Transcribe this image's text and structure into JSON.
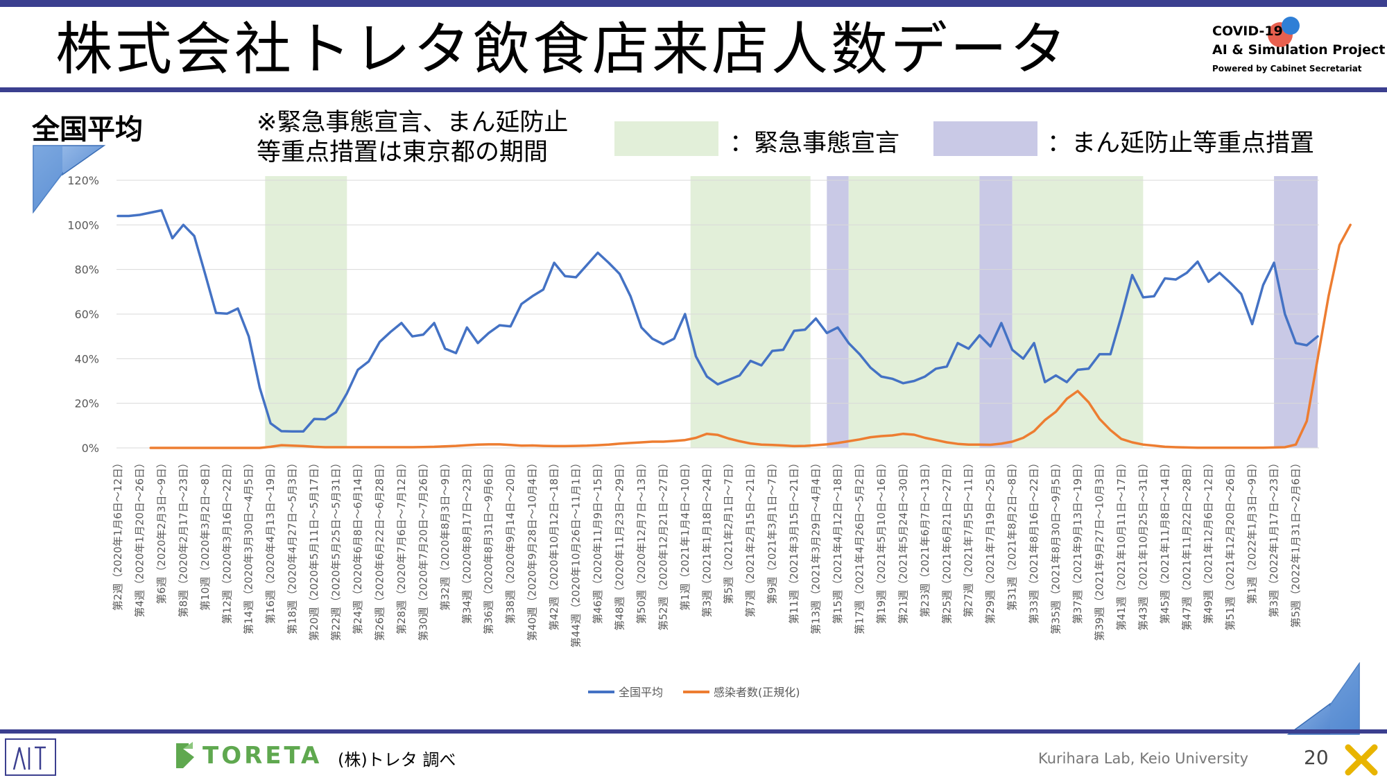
{
  "slide": {
    "title": "株式会社トレタ飲食店来店人数データ",
    "logo": {
      "line1": "COVID-19",
      "line2": "AI & Simulation Project",
      "line3": "Powered by Cabinet Secretariat"
    },
    "section_label": "全国平均",
    "note_line1": "※緊急事態宣言、まん延防止",
    "note_line2": "等重点措置は東京都の期間",
    "legend_emergency": "：緊急事態宣言",
    "legend_manen": "：まん延防止等重点措置",
    "source": "(株)トレタ 調べ",
    "toreta_logo": "TORETA",
    "lab": "Kurihara Lab, Keio University",
    "page_number": "20"
  },
  "colors": {
    "accent_bar": "#3b3f8f",
    "emergency": "#e2efd9",
    "manen": "#c9c9e6",
    "series_avg": "#4472c4",
    "series_infect": "#ed7d31"
  },
  "chart_data": {
    "type": "line",
    "ylim": [
      0,
      120
    ],
    "y_ticks": [
      "0%",
      "20%",
      "40%",
      "60%",
      "80%",
      "100%",
      "120%"
    ],
    "x_tick_labels": [
      "第2週（2020年1月6日～12日）",
      "第4週（2020年1月20日～26日）",
      "第6週（2020年2月3日～9日）",
      "第8週（2020年2月17日～23日）",
      "第10週（2020年3月2日～8日）",
      "第12週（2020年3月16日～22日）",
      "第14週（2020年3月30日～4月5日）",
      "第16週（2020年4月13日～19日）",
      "第18週（2020年4月27日～5月3日）",
      "第20週（2020年5月11日～5月17日）",
      "第22週（2020年5月25日～5月31日）",
      "第24週（2020年6月8日～6月14日）",
      "第26週（2020年6月22日～6月28日）",
      "第28週（2020年7月6日～7月12日）",
      "第30週（2020年7月20日～7月26日）",
      "第32週（2020年8月3日～9日）",
      "第34週（2020年8月17日～23日）",
      "第36週（2020年8月31日～9月6日）",
      "第38週（2020年9月14日～20日）",
      "第40週（2020年9月28日～10月4日）",
      "第42週（2020年10月12日～18日）",
      "第44週（2020年10月26日～11月1日）",
      "第46週（2020年11月9日～15日）",
      "第48週（2020年11月23日～29日）",
      "第50週（2020年12月7日～13日）",
      "第52週（2020年12月21日～27日）",
      "第1週（2021年1月4日～10日）",
      "第3週（2021年1月18日～24日）",
      "第5週（2021年2月1日～7日）",
      "第7週（2021年2月15日～21日）",
      "第9週（2021年3月1日～7日）",
      "第11週（2021年3月15日～21日）",
      "第13週（2021年3月29日～4月4日）",
      "第15週（2021年4月12日～18日）",
      "第17週（2021年4月26日～5月2日）",
      "第19週（2021年5月10日～16日）",
      "第21週（2021年5月24日～30日）",
      "第23週（2021年6月7日～13日）",
      "第25週（2021年6月21日～27日）",
      "第27週（2021年7月5日～11日）",
      "第29週（2021年7月19日～25日）",
      "第31週（2021年8月2日～8日）",
      "第33週（2021年8月16日～22日）",
      "第35週（2021年8月30日～9月5日）",
      "第37週（2021年9月13日～19日）",
      "第39週（2021年9月27日～10月3日）",
      "第41週（2021年10月11日～17日）",
      "第43週（2021年10月25日～31日）",
      "第45週（2021年11月8日～14日）",
      "第47週（2021年11月22日～28日）",
      "第49週（2021年12月6日～12日）",
      "第51週（2021年12月20日～26日）",
      "第1週（2022年1月3日～9日）",
      "第3週（2022年1月17日～23日）",
      "第5週（2022年1月31日～2月6日）"
    ],
    "series": [
      {
        "name": "全国平均",
        "values": [
          104,
          104,
          104.5,
          105.5,
          106.5,
          94,
          100,
          95,
          78,
          60.5,
          60.2,
          62.5,
          50,
          27,
          11,
          7.5,
          7.4,
          7.4,
          13,
          12.8,
          16,
          24.5,
          35,
          38.8,
          47.5,
          52,
          56,
          50,
          50.8,
          56,
          44.5,
          42.5,
          54,
          47,
          51.5,
          55,
          54.5,
          64.5,
          68,
          71,
          83,
          77,
          76.5,
          82,
          87.5,
          83,
          78,
          68,
          54,
          49,
          46.5,
          49,
          60,
          41,
          32,
          28.5,
          30.5,
          32.5,
          39,
          37,
          43.5,
          44,
          52.5,
          53,
          58,
          51.5,
          54,
          47,
          42,
          36,
          32,
          31,
          29,
          30,
          32,
          35.5,
          36.5,
          47,
          44.5,
          50.5,
          45.5,
          56,
          44,
          40,
          47,
          29.5,
          32.5,
          29.5,
          35,
          35.5,
          42,
          42,
          59,
          77.5,
          67.5,
          68,
          76,
          75.5,
          78.5,
          83.5,
          74.5,
          78.5,
          74,
          69,
          55.5,
          73,
          83,
          60,
          47,
          46,
          50
        ]
      },
      {
        "name": "感染者数(正規化)",
        "start_index": 3,
        "values": [
          0,
          0,
          0,
          0,
          0,
          0,
          0,
          0,
          0,
          0,
          0,
          0.5,
          1.2,
          1,
          0.8,
          0.5,
          0.3,
          0.3,
          0.3,
          0.3,
          0.3,
          0.3,
          0.3,
          0.3,
          0.3,
          0.4,
          0.5,
          0.7,
          0.9,
          1.2,
          1.5,
          1.6,
          1.6,
          1.3,
          1,
          1.1,
          0.9,
          0.8,
          0.8,
          0.9,
          1,
          1.2,
          1.5,
          1.9,
          2.2,
          2.5,
          2.8,
          2.8,
          3.1,
          3.5,
          4.5,
          6.3,
          5.8,
          4.2,
          3,
          2,
          1.5,
          1.3,
          1.1,
          0.8,
          0.9,
          1.2,
          1.6,
          2.2,
          3,
          3.8,
          4.8,
          5.3,
          5.6,
          6.3,
          5.9,
          4.5,
          3.5,
          2.5,
          1.8,
          1.5,
          1.5,
          1.4,
          1.9,
          2.8,
          4.5,
          7.5,
          12.5,
          16.2,
          22,
          25.5,
          20.5,
          13,
          8,
          4,
          2.5,
          1.5,
          1,
          0.5,
          0.3,
          0.2,
          0.1,
          0.1,
          0.1,
          0.1,
          0.1,
          0.1,
          0.1,
          0.2,
          0.3,
          1.5,
          12,
          40,
          68,
          91,
          100
        ]
      }
    ],
    "bands": [
      {
        "type": "emergency",
        "start": 13.5,
        "end": 21
      },
      {
        "type": "emergency",
        "start": 52.5,
        "end": 63.5
      },
      {
        "type": "manen",
        "start": 65,
        "end": 67
      },
      {
        "type": "emergency",
        "start": 67,
        "end": 79
      },
      {
        "type": "manen",
        "start": 79,
        "end": 82
      },
      {
        "type": "emergency",
        "start": 82,
        "end": 94
      },
      {
        "type": "manen",
        "start": 106,
        "end": 110
      }
    ]
  }
}
